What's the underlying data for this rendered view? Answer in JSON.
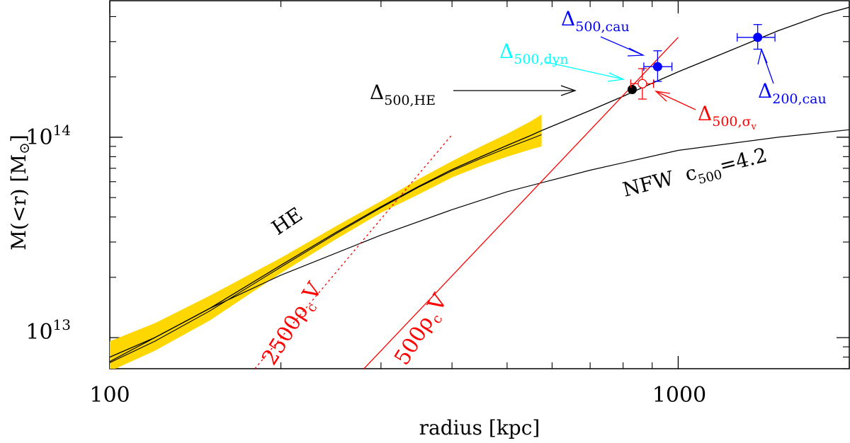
{
  "chart_data": {
    "type": "line",
    "xlabel": "radius [kpc]",
    "ylabel_main": "M(<r) [M",
    "ylabel_sun": "⊙",
    "ylabel_close": "]",
    "xscale": "log",
    "yscale": "log",
    "xlim": [
      100,
      2000
    ],
    "ylim": [
      7000000000000.0,
      480000000000000.0
    ],
    "x_major_ticks": [
      100,
      1000
    ],
    "x_tick_labels": [
      "100",
      "1000"
    ],
    "y_major_ticks": [
      10000000000000.0,
      100000000000000.0
    ],
    "y_tick_labels": [
      {
        "base": "10",
        "exp": "13"
      },
      {
        "base": "10",
        "exp": "14"
      }
    ],
    "colors": {
      "he_band": "#ffd700",
      "red": "#ff0000",
      "blue": "#0000ff",
      "cyan": "#00ffff",
      "black": "#000000"
    },
    "he_band": {
      "label": "HE",
      "x": [
        100,
        120,
        150,
        200,
        250,
        300,
        350,
        400,
        450,
        500,
        550,
        575
      ],
      "central": [
        8000000000000.0,
        10000000000000.0,
        14000000000000.0,
        23000000000000.0,
        33500000000000.0,
        45000000000000.0,
        57000000000000.0,
        69000000000000.0,
        80000000000000.0,
        91000000000000.0,
        102000000000000.0,
        108000000000000.0
      ],
      "upper": [
        9600000000000.0,
        11800000000000.0,
        16200000000000.0,
        25000000000000.0,
        36000000000000.0,
        48000000000000.0,
        62000000000000.0,
        76000000000000.0,
        90000000000000.0,
        104000000000000.0,
        120000000000000.0,
        130000000000000.0
      ],
      "lower": [
        6800000000000.0,
        8600000000000.0,
        12200000000000.0,
        21000000000000.0,
        31000000000000.0,
        42000000000000.0,
        52000000000000.0,
        63000000000000.0,
        72000000000000.0,
        80000000000000.0,
        87000000000000.0,
        90000000000000.0
      ],
      "second_curve": [
        7500000000000.0,
        9600000000000.0,
        13600000000000.0,
        22500000000000.0,
        33000000000000.0,
        44500000000000.0,
        56500000000000.0,
        68000000000000.0,
        78500000000000.0,
        88500000000000.0,
        98000000000000.0,
        103000000000000.0
      ]
    },
    "he_extrapolation": {
      "x": [
        575,
        700,
        800,
        900,
        1000,
        1200,
        1500,
        1800,
        2000
      ],
      "y": [
        108000000000000.0,
        136000000000000.0,
        160000000000000.0,
        186000000000000.0,
        212000000000000.0,
        262000000000000.0,
        340000000000000.0,
        410000000000000.0,
        445000000000000.0
      ]
    },
    "nfw": {
      "label": "NFW",
      "c_label": "c",
      "c_sub": "500",
      "c_value": "=4.2",
      "x": [
        100,
        150,
        200,
        300,
        400,
        500,
        700,
        1000,
        1500,
        2000
      ],
      "y": [
        7600000000000.0,
        14000000000000.0,
        20500000000000.0,
        32500000000000.0,
        43500000000000.0,
        53500000000000.0,
        68500000000000.0,
        86000000000000.0,
        100000000000000.0,
        109000000000000.0
      ]
    },
    "overdensity_lines": [
      {
        "label": "2500ρ",
        "sub": "c",
        "suffix": "V",
        "style": "dotted",
        "x": [
          180,
          400
        ],
        "y": [
          7000000000000.0,
          103000000000000.0
        ]
      },
      {
        "label": "500ρ",
        "sub": "c",
        "suffix": "V",
        "style": "solid",
        "x": [
          280,
          1000
        ],
        "y": [
          7000000000000.0,
          315000000000000.0
        ]
      }
    ],
    "points": [
      {
        "name": "Δ500,HE",
        "x": 830,
        "y": 173000000000000.0,
        "marker": "filled",
        "color": "#000000"
      },
      {
        "name": "Δ500,σv",
        "x": 865,
        "y": 185000000000000.0,
        "marker": "open",
        "color": "#ff0000",
        "xerr": [
          40,
          40
        ],
        "yerr": [
          30000000000000.0,
          35000000000000.0
        ]
      },
      {
        "name": "Δ500,cau",
        "x": 920,
        "y": 225000000000000.0,
        "marker": "filled",
        "color": "#0000ff",
        "xerr": [
          50,
          55
        ],
        "yerr": [
          35000000000000.0,
          45000000000000.0
        ]
      },
      {
        "name": "Δ200,cau",
        "x": 1380,
        "y": 315000000000000.0,
        "marker": "filled",
        "color": "#0000ff",
        "xerr": [
          110,
          100
        ],
        "yerr": [
          40000000000000.0,
          50000000000000.0
        ]
      }
    ],
    "annotations": {
      "he": {
        "main": "Δ",
        "sub": "500,HE"
      },
      "dyn": {
        "main": "Δ",
        "sub": "500,dyn"
      },
      "cau500": {
        "main": "Δ",
        "sub": "500,cau"
      },
      "cau200": {
        "main": "Δ",
        "sub": "200,cau"
      },
      "sigma": {
        "main": "Δ",
        "sub": "500,σ",
        "subsub": "v"
      }
    }
  }
}
